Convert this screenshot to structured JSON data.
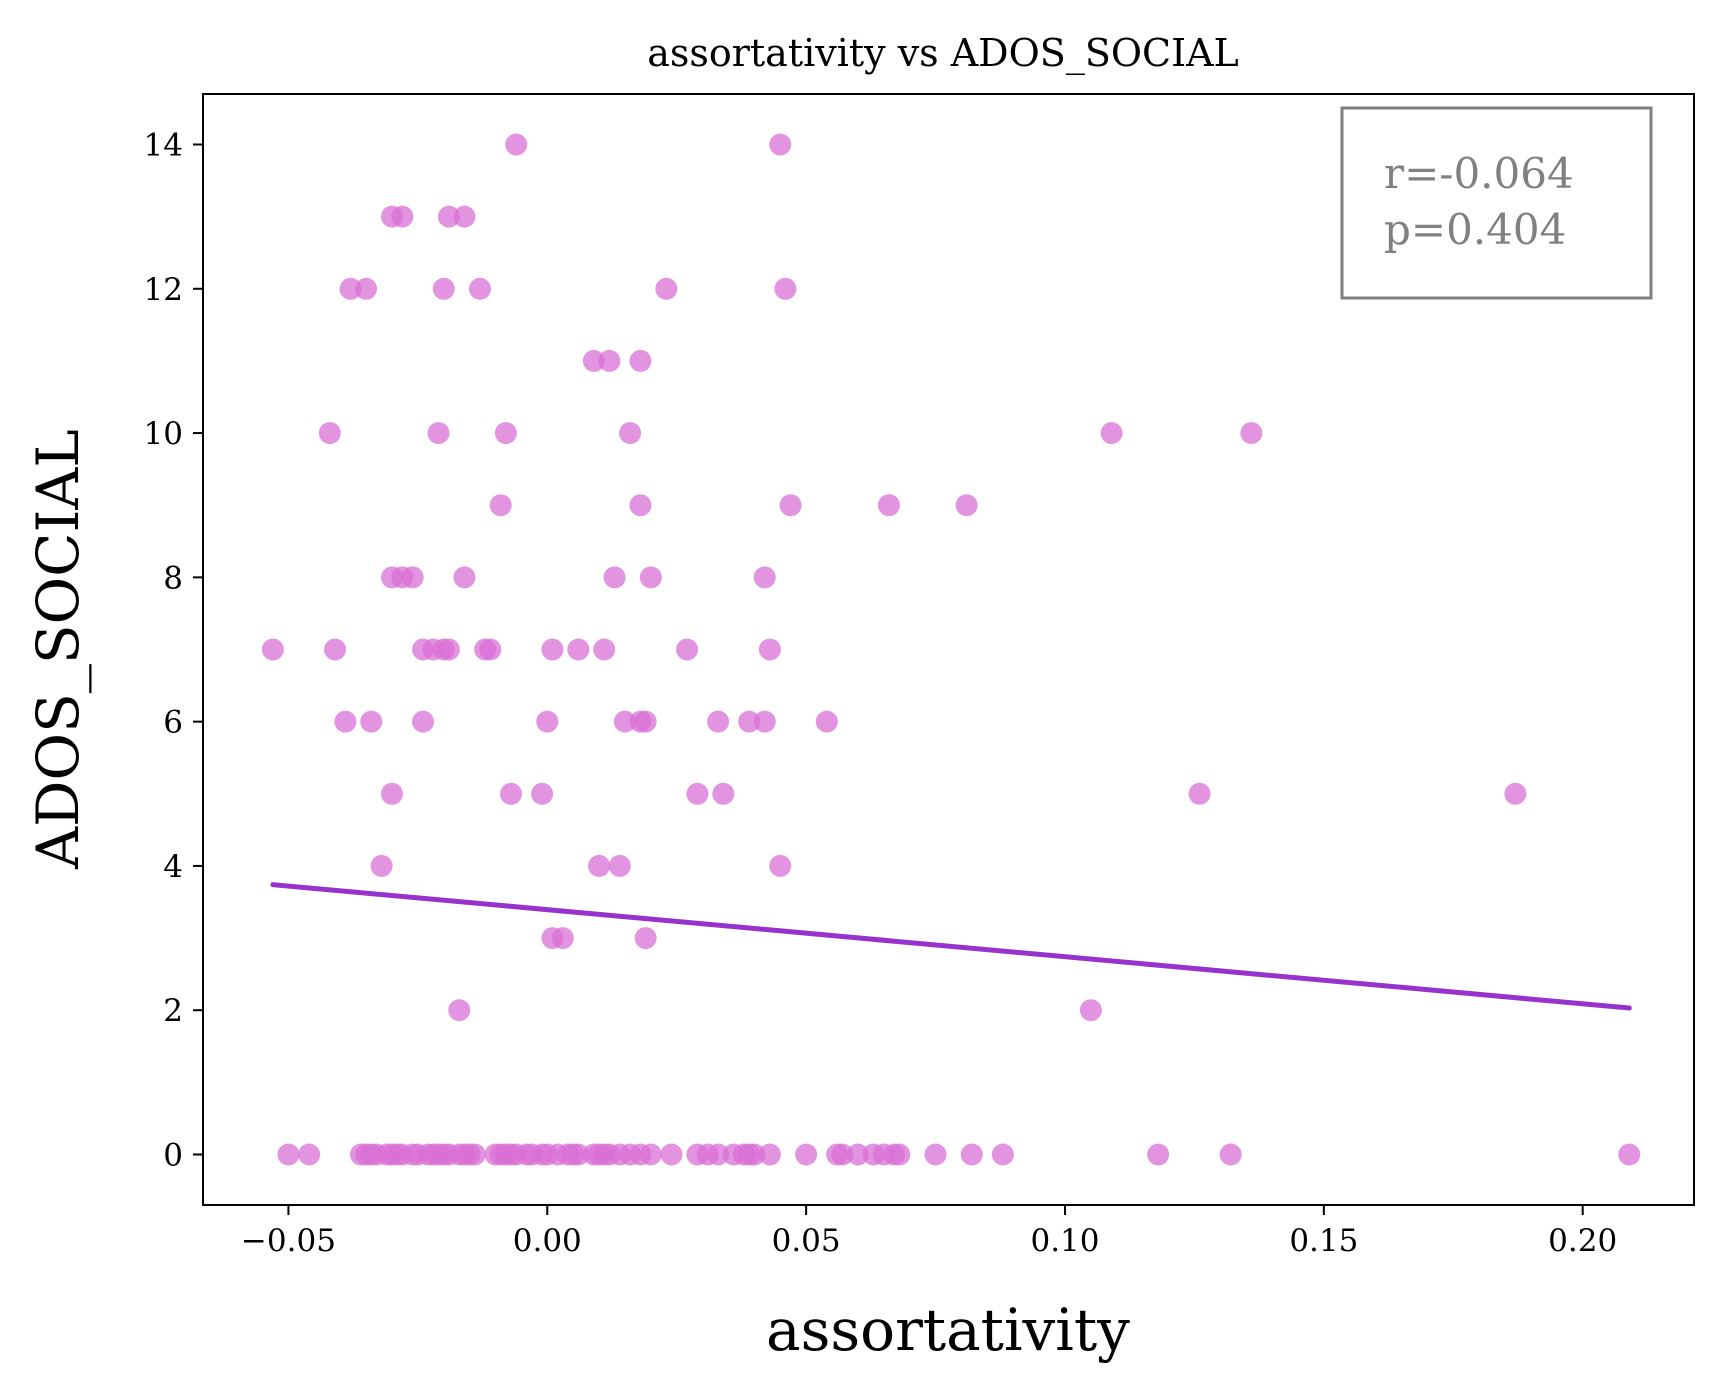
{
  "chart_data": {
    "type": "scatter",
    "title": "assortativity vs ADOS_SOCIAL",
    "xlabel": "assortativity",
    "ylabel": "ADOS_SOCIAL",
    "xlim": [
      -0.0665,
      0.2215
    ],
    "ylim": [
      -0.7,
      14.7
    ],
    "xticks": [
      -0.05,
      0.0,
      0.05,
      0.1,
      0.15,
      0.2
    ],
    "xtick_labels": [
      "−0.05",
      "0.00",
      "0.05",
      "0.10",
      "0.15",
      "0.20"
    ],
    "yticks": [
      0,
      2,
      4,
      6,
      8,
      10,
      12,
      14
    ],
    "ytick_labels": [
      "0",
      "2",
      "4",
      "6",
      "8",
      "10",
      "12",
      "14"
    ],
    "grid": false,
    "annotation": {
      "lines": [
        "r=-0.064",
        "p=0.404"
      ],
      "location": "top-right"
    },
    "colors": {
      "points": "#da70d6",
      "fit_line": "#9932cc",
      "annotation_text": "#808080",
      "annotation_border": "#808080"
    },
    "fit_line": {
      "x": [
        -0.053,
        0.209
      ],
      "y": [
        3.74,
        2.03
      ]
    },
    "points": [
      [
        -0.006,
        14
      ],
      [
        0.045,
        14
      ],
      [
        -0.03,
        13
      ],
      [
        -0.028,
        13
      ],
      [
        -0.019,
        13
      ],
      [
        -0.016,
        13
      ],
      [
        -0.038,
        12
      ],
      [
        -0.035,
        12
      ],
      [
        -0.02,
        12
      ],
      [
        -0.013,
        12
      ],
      [
        0.023,
        12
      ],
      [
        0.046,
        12
      ],
      [
        0.009,
        11
      ],
      [
        0.012,
        11
      ],
      [
        0.018,
        11
      ],
      [
        -0.042,
        10
      ],
      [
        -0.021,
        10
      ],
      [
        -0.008,
        10
      ],
      [
        0.016,
        10
      ],
      [
        0.109,
        10
      ],
      [
        0.136,
        10
      ],
      [
        -0.009,
        9
      ],
      [
        0.018,
        9
      ],
      [
        0.047,
        9
      ],
      [
        0.066,
        9
      ],
      [
        0.081,
        9
      ],
      [
        -0.03,
        8
      ],
      [
        -0.028,
        8
      ],
      [
        -0.026,
        8
      ],
      [
        -0.016,
        8
      ],
      [
        0.013,
        8
      ],
      [
        0.02,
        8
      ],
      [
        0.042,
        8
      ],
      [
        -0.053,
        7
      ],
      [
        -0.041,
        7
      ],
      [
        -0.024,
        7
      ],
      [
        -0.022,
        7
      ],
      [
        -0.02,
        7
      ],
      [
        -0.019,
        7
      ],
      [
        -0.012,
        7
      ],
      [
        -0.011,
        7
      ],
      [
        0.001,
        7
      ],
      [
        0.006,
        7
      ],
      [
        0.011,
        7
      ],
      [
        0.027,
        7
      ],
      [
        0.043,
        7
      ],
      [
        -0.039,
        6
      ],
      [
        -0.034,
        6
      ],
      [
        -0.024,
        6
      ],
      [
        0.0,
        6
      ],
      [
        0.015,
        6
      ],
      [
        0.018,
        6
      ],
      [
        0.019,
        6
      ],
      [
        0.033,
        6
      ],
      [
        0.039,
        6
      ],
      [
        0.042,
        6
      ],
      [
        0.054,
        6
      ],
      [
        -0.03,
        5
      ],
      [
        -0.007,
        5
      ],
      [
        -0.001,
        5
      ],
      [
        0.029,
        5
      ],
      [
        0.034,
        5
      ],
      [
        0.126,
        5
      ],
      [
        0.187,
        5
      ],
      [
        -0.032,
        4
      ],
      [
        0.01,
        4
      ],
      [
        0.014,
        4
      ],
      [
        0.045,
        4
      ],
      [
        0.001,
        3
      ],
      [
        0.003,
        3
      ],
      [
        0.019,
        3
      ],
      [
        -0.017,
        2
      ],
      [
        0.105,
        2
      ],
      [
        -0.05,
        0
      ],
      [
        -0.046,
        0
      ],
      [
        -0.036,
        0
      ],
      [
        -0.035,
        0
      ],
      [
        -0.034,
        0
      ],
      [
        -0.033,
        0
      ],
      [
        -0.031,
        0
      ],
      [
        -0.03,
        0
      ],
      [
        -0.029,
        0
      ],
      [
        -0.028,
        0
      ],
      [
        -0.026,
        0
      ],
      [
        -0.025,
        0
      ],
      [
        -0.023,
        0
      ],
      [
        -0.022,
        0
      ],
      [
        -0.021,
        0
      ],
      [
        -0.02,
        0
      ],
      [
        -0.019,
        0
      ],
      [
        -0.017,
        0
      ],
      [
        -0.016,
        0
      ],
      [
        -0.015,
        0
      ],
      [
        -0.014,
        0
      ],
      [
        -0.01,
        0
      ],
      [
        -0.009,
        0
      ],
      [
        -0.008,
        0
      ],
      [
        -0.007,
        0
      ],
      [
        -0.006,
        0
      ],
      [
        -0.004,
        0
      ],
      [
        -0.003,
        0
      ],
      [
        -0.001,
        0
      ],
      [
        0.0,
        0
      ],
      [
        0.002,
        0
      ],
      [
        0.004,
        0
      ],
      [
        0.005,
        0
      ],
      [
        0.006,
        0
      ],
      [
        0.009,
        0
      ],
      [
        0.01,
        0
      ],
      [
        0.011,
        0
      ],
      [
        0.012,
        0
      ],
      [
        0.014,
        0
      ],
      [
        0.016,
        0
      ],
      [
        0.018,
        0
      ],
      [
        0.02,
        0
      ],
      [
        0.024,
        0
      ],
      [
        0.029,
        0
      ],
      [
        0.031,
        0
      ],
      [
        0.033,
        0
      ],
      [
        0.036,
        0
      ],
      [
        0.038,
        0
      ],
      [
        0.039,
        0
      ],
      [
        0.04,
        0
      ],
      [
        0.043,
        0
      ],
      [
        0.05,
        0
      ],
      [
        0.056,
        0
      ],
      [
        0.057,
        0
      ],
      [
        0.06,
        0
      ],
      [
        0.063,
        0
      ],
      [
        0.065,
        0
      ],
      [
        0.067,
        0
      ],
      [
        0.068,
        0
      ],
      [
        0.075,
        0
      ],
      [
        0.082,
        0
      ],
      [
        0.088,
        0
      ],
      [
        0.118,
        0
      ],
      [
        0.132,
        0
      ],
      [
        0.209,
        0
      ]
    ]
  }
}
